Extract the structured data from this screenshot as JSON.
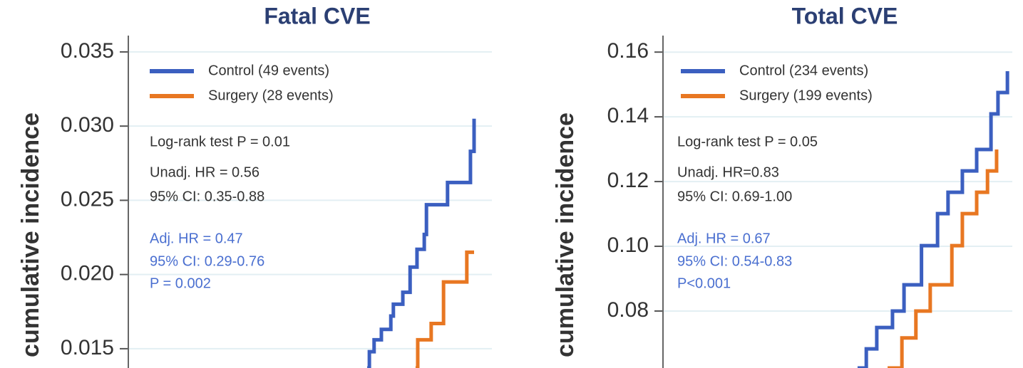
{
  "chart_data": [
    {
      "type": "step",
      "title": "Fatal CVE",
      "y_label": "cumulative incidence",
      "xlim": [
        0,
        100
      ],
      "ylim": [
        0.0137,
        0.0361
      ],
      "yticks": [
        0.015,
        {
          "value": 0.02,
          "label": "0.020"
        },
        0.025,
        {
          "value": 0.03,
          "label": "0.030"
        },
        0.035
      ],
      "grid": true,
      "legend": "upper left",
      "series": [
        {
          "name": "Control (49 events)",
          "color": "#3b5fc0",
          "x": [
            65.7,
            66.3,
            67.6,
            69.6,
            72.2,
            72.9,
            75.5,
            77.5,
            79.4,
            81.4,
            82.0,
            87.8,
            94.1,
            95.1
          ],
          "values": [
            0.0137,
            0.0148,
            0.0156,
            0.0163,
            0.0172,
            0.018,
            0.0188,
            0.0205,
            0.0217,
            0.0227,
            0.0247,
            0.0262,
            0.0283,
            0.0305
          ]
        },
        {
          "name": "Surgery (28 events)",
          "color": "#e87722",
          "x": [
            79.0,
            79.6,
            83.3,
            86.7,
            93.1,
            95.1
          ],
          "values": [
            0.0137,
            0.0156,
            0.0167,
            0.0195,
            0.0215,
            0.0215
          ]
        }
      ],
      "annotations": [
        {
          "text": "Log-rank test P = 0.01",
          "color": "#333333"
        },
        {
          "text": "Unadj. HR = 0.56",
          "color": "#333333"
        },
        {
          "text": "95% CI: 0.35-0.88",
          "color": "#333333"
        },
        {
          "text": "Adj. HR = 0.47",
          "color": "#4a6fd0"
        },
        {
          "text": "95% CI: 0.29-0.76",
          "color": "#4a6fd0"
        },
        {
          "text": "P = 0.002",
          "color": "#4a6fd0"
        }
      ]
    },
    {
      "type": "step",
      "title": "Total CVE",
      "y_label": "cumulative incidence",
      "xlim": [
        0,
        100
      ],
      "ylim": [
        0.0624,
        0.1651
      ],
      "yticks": [
        0.08,
        {
          "value": 0.1,
          "label": "0.10"
        },
        0.12,
        0.14,
        0.16
      ],
      "grid": true,
      "legend": "upper left",
      "series": [
        {
          "name": "Control (234 events)",
          "color": "#3b5fc0",
          "x": [
            55.7,
            58.2,
            61.2,
            65.7,
            69.0,
            74.0,
            78.6,
            81.6,
            85.7,
            89.8,
            93.9,
            95.9,
            98.6
          ],
          "values": [
            0.0624,
            0.0683,
            0.0749,
            0.08,
            0.0881,
            0.1002,
            0.1101,
            0.1167,
            0.1233,
            0.1299,
            0.1409,
            0.1475,
            0.1541
          ]
        },
        {
          "name": "Surgery (199 events)",
          "color": "#e87722",
          "x": [
            64.3,
            68.4,
            72.4,
            76.5,
            82.7,
            85.7,
            89.8,
            92.9,
            95.5
          ],
          "values": [
            0.0624,
            0.0717,
            0.08,
            0.0881,
            0.1002,
            0.1101,
            0.1167,
            0.1233,
            0.1299
          ]
        }
      ],
      "annotations": [
        {
          "text": "Log-rank test P = 0.05",
          "color": "#333333"
        },
        {
          "text": "Unadj. HR=0.83",
          "color": "#333333"
        },
        {
          "text": "95% CI: 0.69-1.00",
          "color": "#333333"
        },
        {
          "text": "Adj. HR = 0.67",
          "color": "#4a6fd0"
        },
        {
          "text": "95% CI: 0.54-0.83",
          "color": "#4a6fd0"
        },
        {
          "text": "P<0.001",
          "color": "#4a6fd0"
        }
      ]
    }
  ]
}
